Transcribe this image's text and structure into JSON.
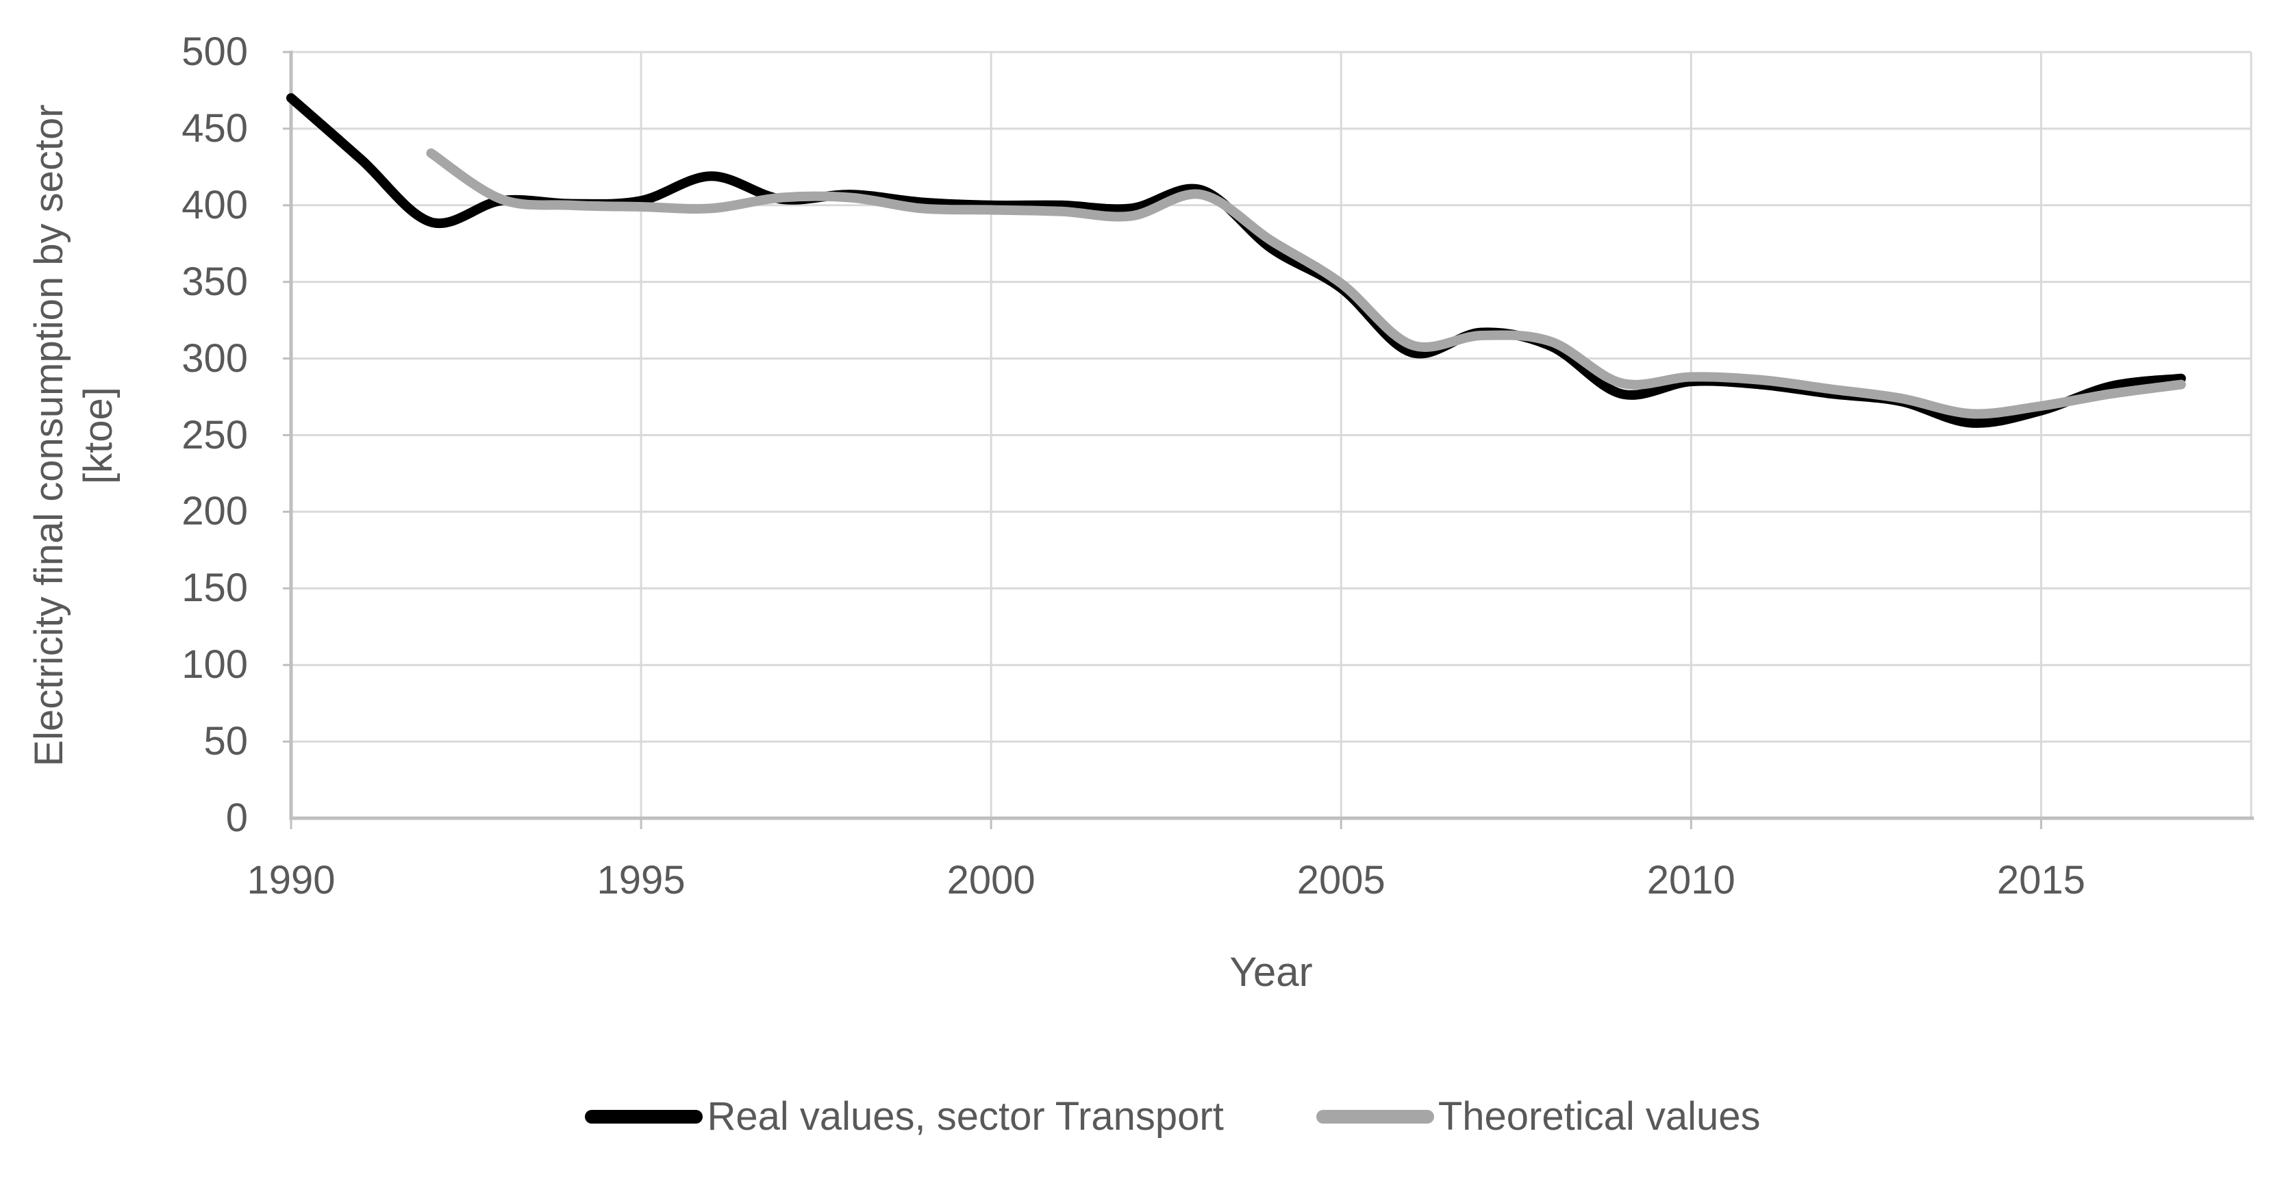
{
  "chart_data": {
    "type": "line",
    "title": "",
    "xlabel": "Year",
    "ylabel": "Electricity final consumption by sector [ktoe]",
    "ylabel_lines": [
      "Electricity final consumption by sector",
      "[ktoe]"
    ],
    "x": [
      1990,
      1991,
      1992,
      1993,
      1994,
      1995,
      1996,
      1997,
      1998,
      1999,
      2000,
      2001,
      2002,
      2003,
      2004,
      2005,
      2006,
      2007,
      2008,
      2009,
      2010,
      2011,
      2012,
      2013,
      2014,
      2015,
      2016,
      2017
    ],
    "series": [
      {
        "name": "Real values, sector Transport",
        "color": "#000000",
        "values": [
          470,
          430,
          389,
          403,
          401,
          403,
          419,
          404,
          407,
          402,
          400,
          400,
          398,
          410,
          372,
          346,
          304,
          317,
          308,
          277,
          285,
          283,
          277,
          272,
          258,
          266,
          282,
          287
        ]
      },
      {
        "name": "Theoretical values",
        "color": "#a6a6a6",
        "values": [
          null,
          null,
          434,
          404,
          400,
          399,
          398,
          405,
          405,
          398,
          397,
          396,
          393,
          407,
          377,
          349,
          309,
          315,
          311,
          284,
          288,
          286,
          280,
          274,
          264,
          269,
          277,
          283
        ]
      }
    ],
    "xlim": [
      1990,
      2018
    ],
    "ylim": [
      0,
      500
    ],
    "x_ticks": [
      1990,
      1995,
      2000,
      2005,
      2010,
      2015
    ],
    "y_ticks": [
      0,
      50,
      100,
      150,
      200,
      250,
      300,
      350,
      400,
      450,
      500
    ],
    "grid": true,
    "legend_position": "bottom",
    "line_smoothing": true
  },
  "style_colors": {
    "gridline": "#d9d9d9",
    "axis_line": "#bfbfbf",
    "text": "#595959",
    "background": "#ffffff"
  }
}
